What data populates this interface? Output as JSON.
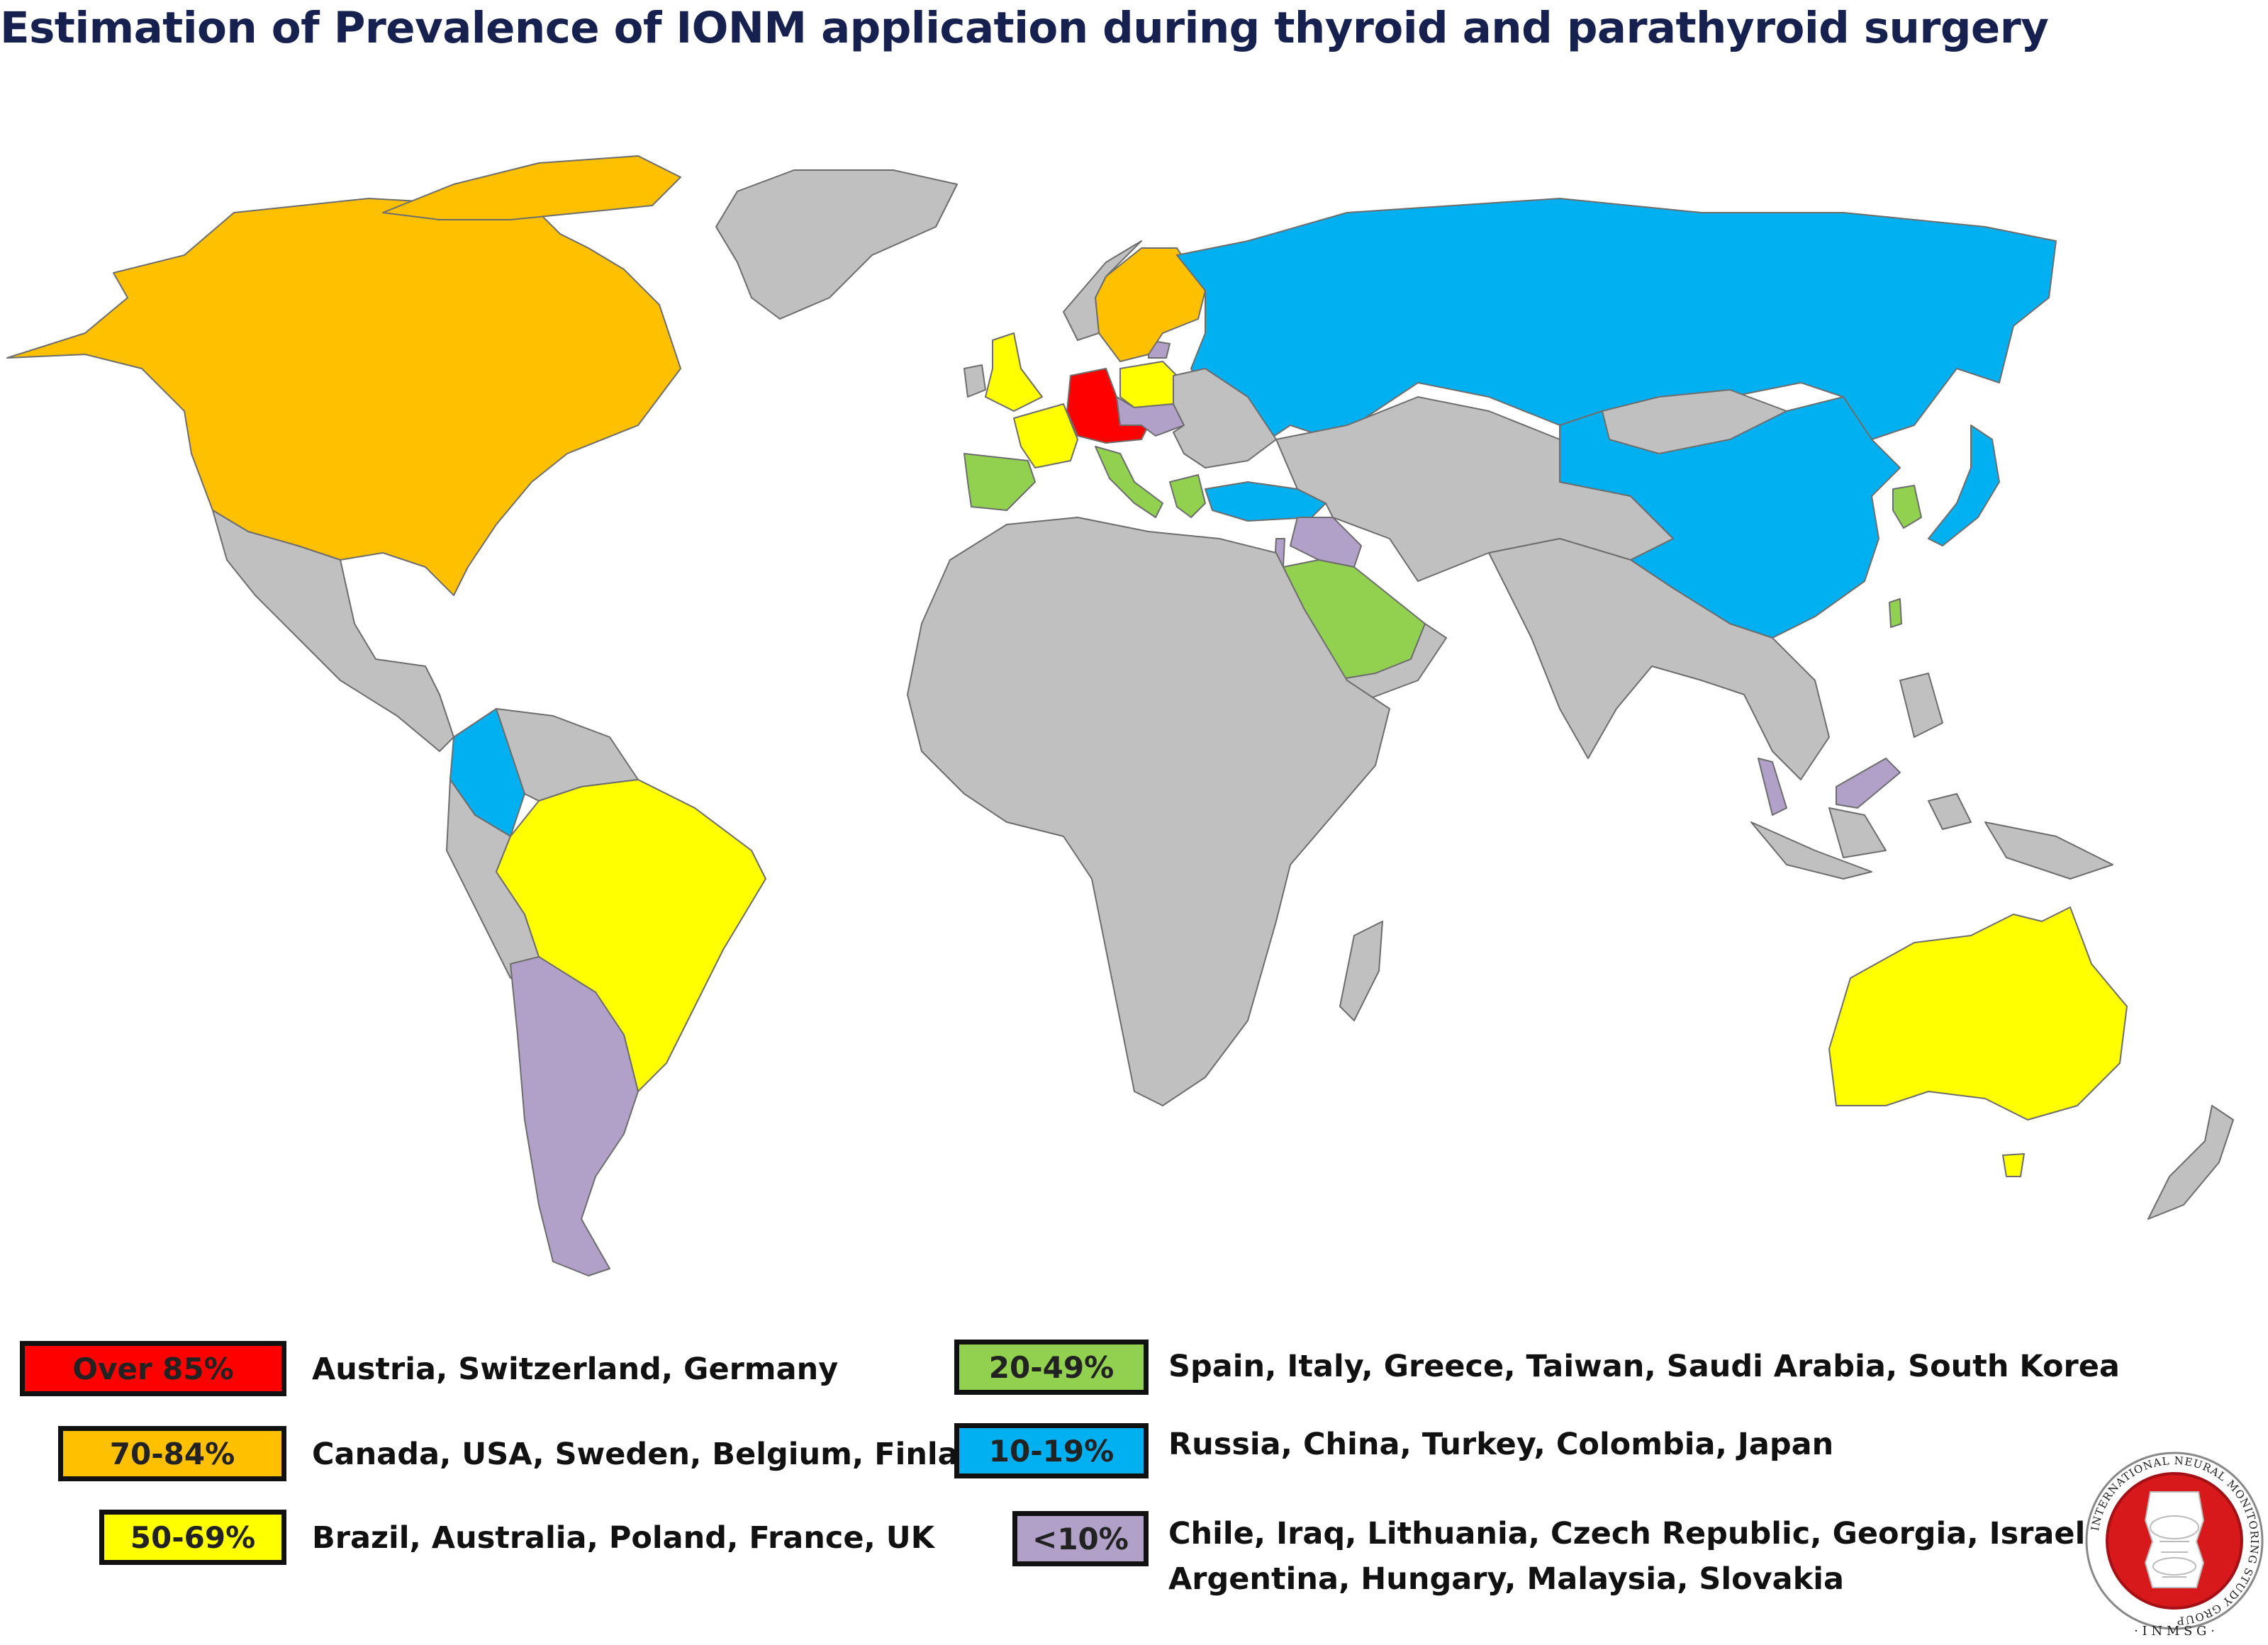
{
  "title": "Estimation of Prevalence of IONM application during thyroid and parathyroid surgery",
  "colors": {
    "over85": "#ff0000",
    "r70_84": "#ffc000",
    "r50_69": "#ffff00",
    "r20_49": "#92d050",
    "r10_19": "#00b0f0",
    "lt10": "#b1a0c7",
    "no_data": "#c0c0c0",
    "title": "#17214f"
  },
  "legend": [
    {
      "range": "Over 85%",
      "countries": "Austria, Switzerland, Germany",
      "color": "#ff0000"
    },
    {
      "range": "70-84%",
      "countries": "Canada, USA, Sweden, Belgium, Finland",
      "color": "#ffc000"
    },
    {
      "range": "50-69%",
      "countries": "Brazil, Australia, Poland, France, UK",
      "color": "#ffff00"
    },
    {
      "range": "20-49%",
      "countries": "Spain, Italy, Greece, Taiwan, Saudi Arabia, South Korea",
      "color": "#92d050"
    },
    {
      "range": "10-19%",
      "countries": "Russia, China, Turkey, Colombia, Japan",
      "color": "#00b0f0"
    },
    {
      "range": "<10%",
      "countries": "Chile, Iraq, Lithuania, Czech Republic, Georgia, Israel,",
      "countries_line2": "Argentina, Hungary, Malaysia, Slovakia",
      "color": "#b1a0c7"
    }
  ],
  "logo": {
    "ring_text": "INTERNATIONAL NEURAL MONITORING STUDY GROUP",
    "bottom_text": "· I N M S G ·",
    "icon": "thyroid-larynx-icon"
  }
}
